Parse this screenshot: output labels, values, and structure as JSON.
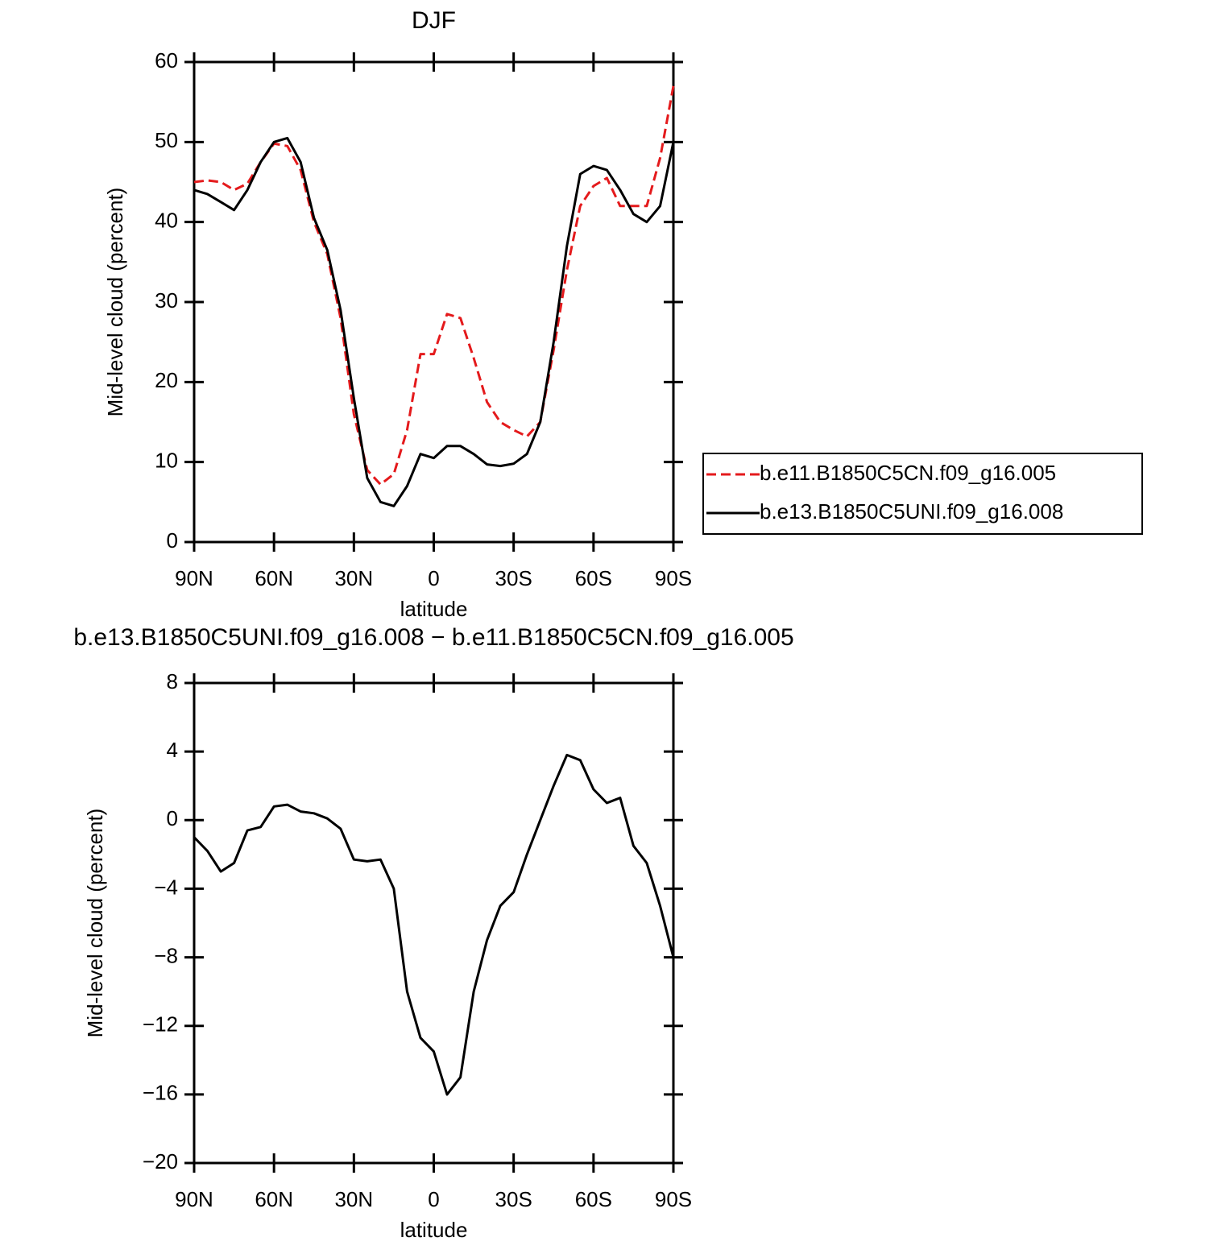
{
  "chart_data": [
    {
      "type": "line",
      "title": "DJF",
      "xlabel": "latitude",
      "ylabel": "Mid-level cloud (percent)",
      "x": [
        90,
        85,
        80,
        75,
        70,
        65,
        60,
        55,
        50,
        45,
        40,
        35,
        30,
        25,
        20,
        15,
        10,
        5,
        0,
        -5,
        -10,
        -15,
        -20,
        -25,
        -30,
        -35,
        -40,
        -45,
        -50,
        -55,
        -60,
        -65,
        -70,
        -75,
        -80,
        -85,
        -90
      ],
      "xlim": [
        90,
        -90
      ],
      "xticks": [
        {
          "value": 90,
          "label": "90N"
        },
        {
          "value": 60,
          "label": "60N"
        },
        {
          "value": 30,
          "label": "30N"
        },
        0,
        {
          "value": -30,
          "label": "30S"
        },
        {
          "value": -60,
          "label": "60S"
        },
        {
          "value": -90,
          "label": "90S"
        }
      ],
      "ylim": [
        0,
        60
      ],
      "yticks": [
        0,
        10,
        20,
        30,
        40,
        50,
        60
      ],
      "legend": "right",
      "series": [
        {
          "name": "b.e11.B1850C5CN.f09_g16.005",
          "color": "#e41a1c",
          "style": "dashed",
          "values": [
            45,
            45.2,
            45,
            44,
            44.8,
            47.5,
            49.8,
            49.5,
            46.5,
            40,
            36,
            28,
            16,
            9,
            7.2,
            8.5,
            14,
            23.5,
            23.5,
            28.5,
            28,
            23,
            17.5,
            15,
            14,
            13.2,
            15,
            24,
            34,
            42,
            44.5,
            45.5,
            42,
            42,
            42,
            48,
            57
          ]
        },
        {
          "name": "b.e13.B1850C5UNI.f09_g16.008",
          "color": "#000000",
          "style": "solid",
          "values": [
            44,
            43.5,
            42.5,
            41.5,
            44,
            47.5,
            50,
            50.5,
            47.5,
            40.5,
            36.5,
            29,
            18,
            8,
            5,
            4.5,
            7,
            11,
            10.5,
            12,
            12,
            11,
            9.7,
            9.5,
            9.8,
            11,
            15,
            25,
            37,
            46,
            47,
            46.5,
            44,
            41,
            40,
            42,
            50
          ]
        }
      ]
    },
    {
      "type": "line",
      "title": "b.e13.B1850C5UNI.f09_g16.008 − b.e11.B1850C5CN.f09_g16.005",
      "xlabel": "latitude",
      "ylabel": "Mid-level cloud (percent)",
      "x": [
        90,
        85,
        80,
        75,
        70,
        65,
        60,
        55,
        50,
        45,
        40,
        35,
        30,
        25,
        20,
        15,
        10,
        5,
        0,
        -5,
        -10,
        -15,
        -20,
        -25,
        -30,
        -35,
        -40,
        -45,
        -50,
        -55,
        -60,
        -65,
        -70,
        -75,
        -80,
        -85,
        -90
      ],
      "xlim": [
        90,
        -90
      ],
      "xticks": [
        {
          "value": 90,
          "label": "90N"
        },
        {
          "value": 60,
          "label": "60N"
        },
        {
          "value": 30,
          "label": "30N"
        },
        0,
        {
          "value": -30,
          "label": "30S"
        },
        {
          "value": -60,
          "label": "60S"
        },
        {
          "value": -90,
          "label": "90S"
        }
      ],
      "ylim": [
        -20,
        8
      ],
      "yticks": [
        {
          "value": -20,
          "label": "−20"
        },
        {
          "value": -16,
          "label": "−16"
        },
        {
          "value": -12,
          "label": "−12"
        },
        {
          "value": -8,
          "label": "−8"
        },
        {
          "value": -4,
          "label": "−4"
        },
        0,
        4,
        8
      ],
      "series": [
        {
          "color": "#000000",
          "style": "solid",
          "values": [
            -1,
            -1.8,
            -3,
            -2.5,
            -0.6,
            -0.4,
            0.8,
            0.9,
            0.5,
            0.4,
            0.1,
            -0.5,
            -2.3,
            -2.4,
            -2.3,
            -4,
            -10,
            -12.7,
            -13.5,
            -16,
            -15,
            -10,
            -7,
            -5,
            -4.2,
            -2,
            0,
            2,
            3.8,
            3.5,
            1.8,
            1,
            1.3,
            -1.5,
            -2.5,
            -5,
            -8
          ]
        }
      ]
    }
  ]
}
